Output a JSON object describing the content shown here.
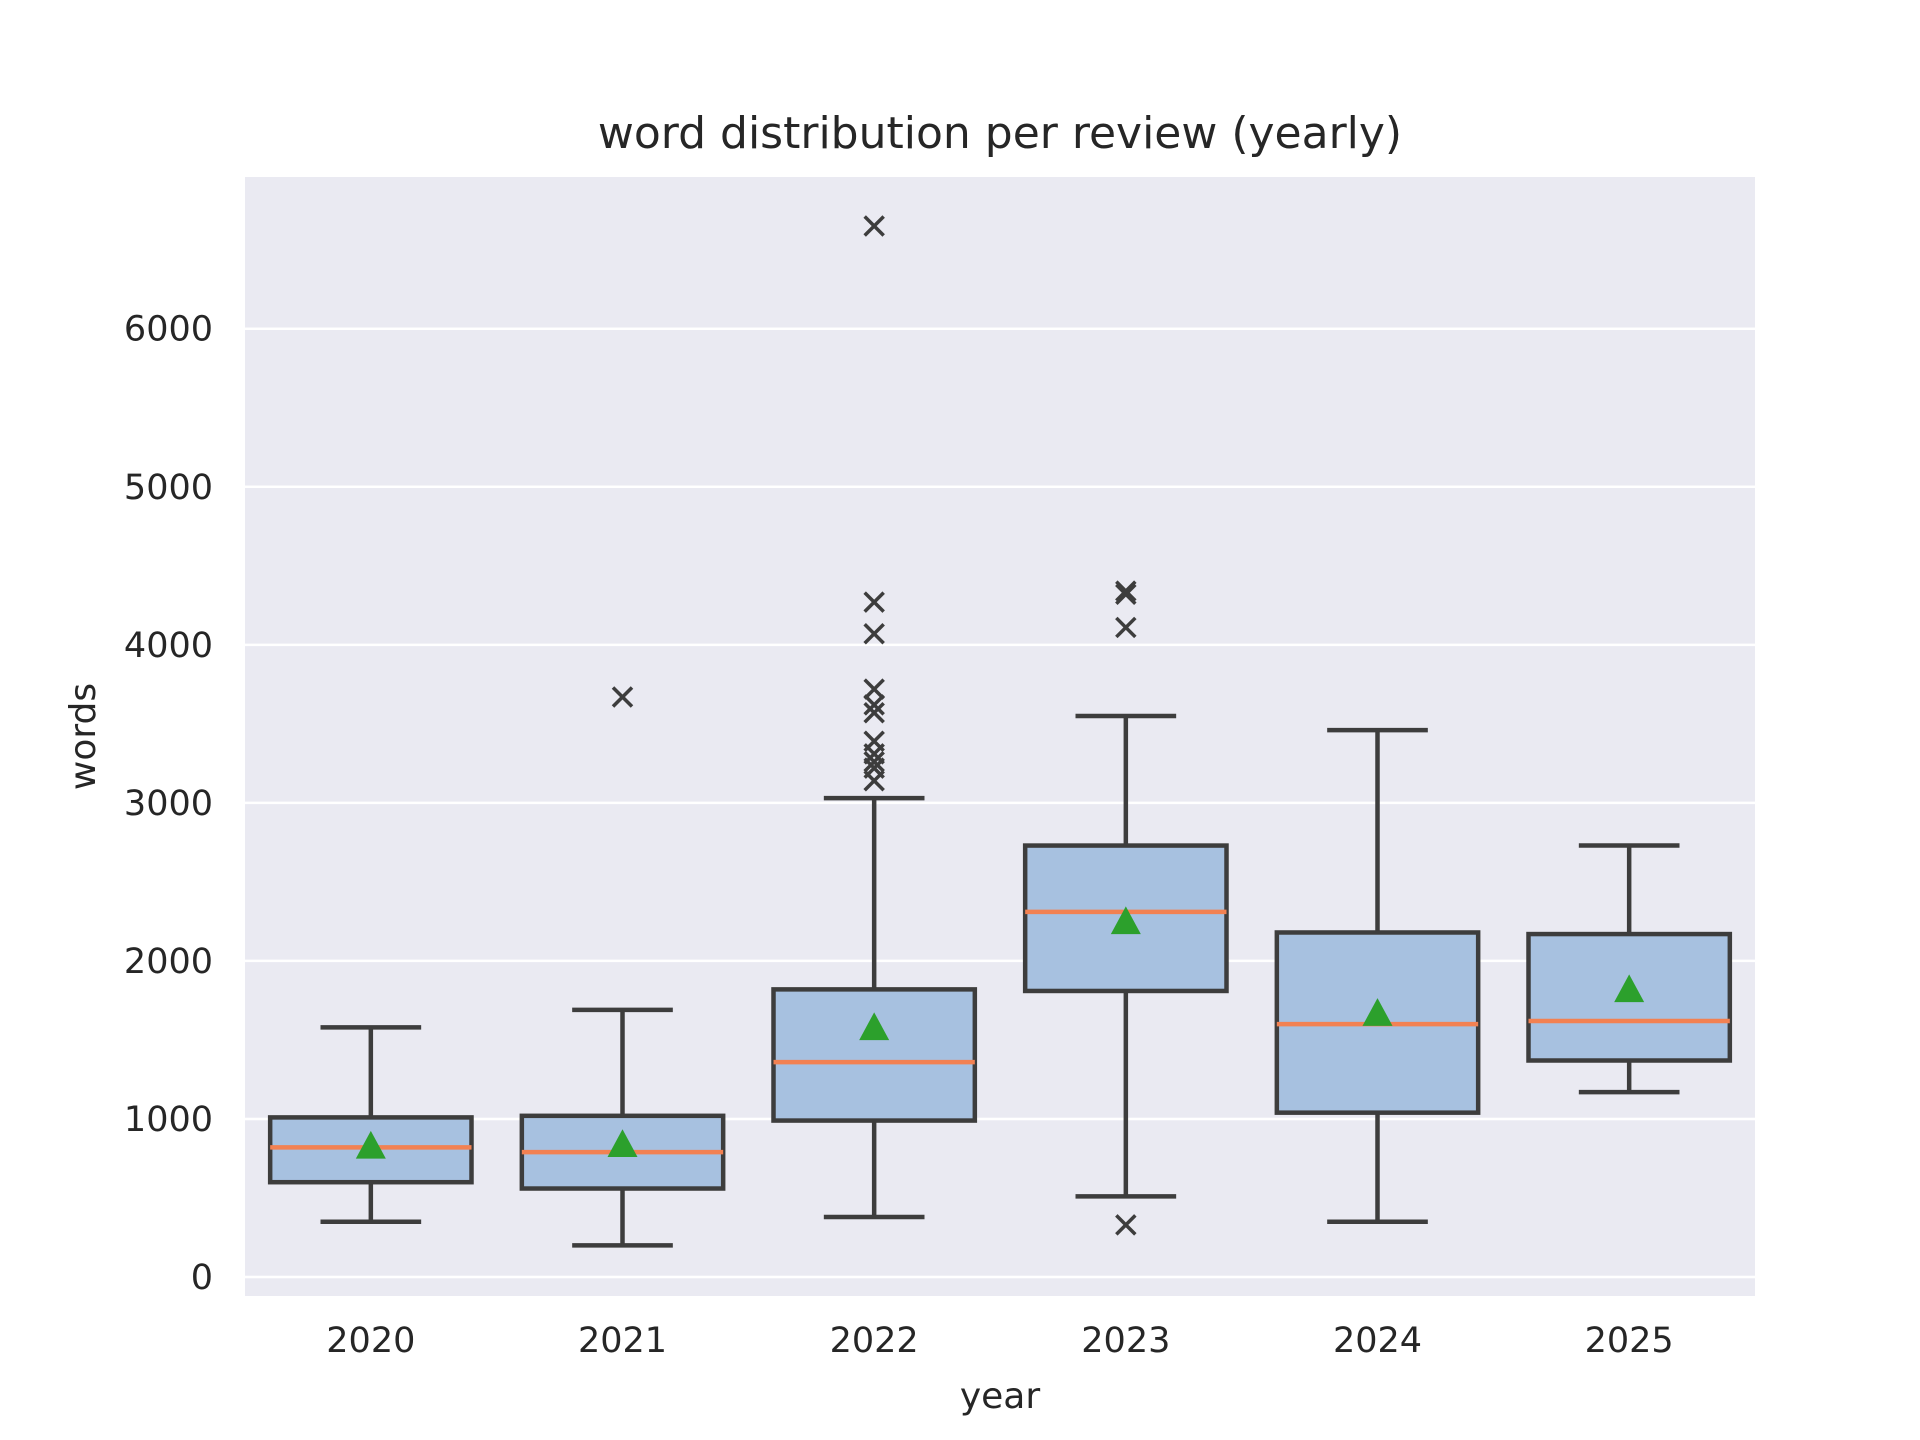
{
  "chart_data": {
    "type": "box",
    "title": "word distribution per review (yearly)",
    "xlabel": "year",
    "ylabel": "words",
    "ylim": [
      -120,
      6960
    ],
    "yticks": [
      0,
      1000,
      2000,
      3000,
      4000,
      5000,
      6000
    ],
    "ytick_labels": [
      "0",
      "1000",
      "2000",
      "3000",
      "4000",
      "5000",
      "6000"
    ],
    "grid": true,
    "categories": [
      "2020",
      "2021",
      "2022",
      "2023",
      "2024",
      "2025"
    ],
    "boxes": [
      {
        "category": "2020",
        "whisker_low": 350,
        "q1": 600,
        "median": 820,
        "q3": 1010,
        "whisker_high": 1580,
        "mean": 830,
        "outliers": []
      },
      {
        "category": "2021",
        "whisker_low": 200,
        "q1": 560,
        "median": 790,
        "q3": 1020,
        "whisker_high": 1690,
        "mean": 840,
        "outliers": [
          3670
        ]
      },
      {
        "category": "2022",
        "whisker_low": 380,
        "q1": 990,
        "median": 1360,
        "q3": 1820,
        "whisker_high": 3030,
        "mean": 1580,
        "outliers": [
          3140,
          3220,
          3260,
          3310,
          3390,
          3570,
          3620,
          3720,
          4070,
          4270,
          6650
        ]
      },
      {
        "category": "2023",
        "whisker_low": 510,
        "q1": 1810,
        "median": 2310,
        "q3": 2730,
        "whisker_high": 3550,
        "mean": 2250,
        "outliers": [
          330,
          4110,
          4320,
          4340
        ]
      },
      {
        "category": "2024",
        "whisker_low": 350,
        "q1": 1040,
        "median": 1600,
        "q3": 2180,
        "whisker_high": 3460,
        "mean": 1670,
        "outliers": []
      },
      {
        "category": "2025",
        "whisker_low": 1170,
        "q1": 1370,
        "median": 1620,
        "q3": 2170,
        "whisker_high": 2730,
        "mean": 1820,
        "outliers": []
      }
    ],
    "colors": {
      "box_fill": "#a7c1e0",
      "box_edge": "#3d3d3d",
      "median": "#f28152",
      "mean_marker": "#2ca02c",
      "outlier": "#3d3d3d",
      "plot_background": "#eaeaf2",
      "grid": "#ffffff"
    },
    "mean_marker": "triangle",
    "outlier_marker": "x"
  }
}
